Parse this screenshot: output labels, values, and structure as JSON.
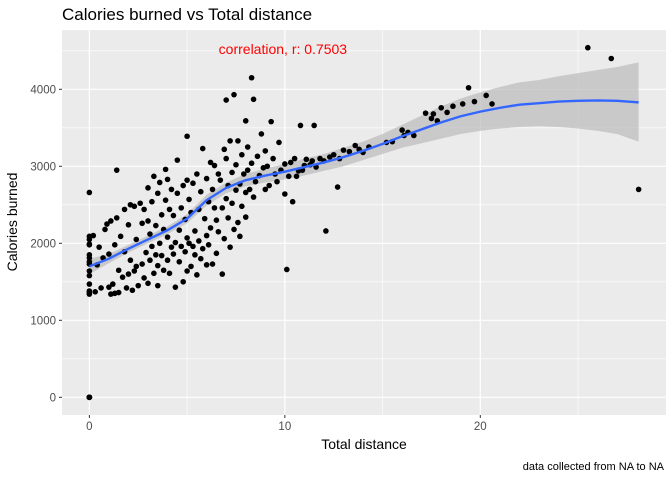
{
  "chart_data": {
    "type": "scatter",
    "title": "Calories burned vs Total distance",
    "xlabel": "Total distance",
    "ylabel": "Calories burned",
    "caption": "data collected from NA to NA",
    "annotation": {
      "text": "correlation, r: 0.7503",
      "x": 9.9,
      "y": 4460,
      "color": "#ff0000"
    },
    "xlim": [
      -1.4,
      29.5
    ],
    "ylim": [
      -230,
      4770
    ],
    "x_ticks": [
      0,
      10,
      20
    ],
    "y_ticks": [
      0,
      1000,
      2000,
      3000,
      4000
    ],
    "grid": true,
    "panel_background": "#ebebeb",
    "grid_color": "#ffffff",
    "point_color": "#000000",
    "smooth": {
      "method": "loess",
      "color": "#3366ff",
      "band_color": "#bdbdbd",
      "points": [
        [
          0,
          1700,
          1600,
          1800
        ],
        [
          1,
          1800,
          1740,
          1860
        ],
        [
          2,
          1930,
          1880,
          1980
        ],
        [
          3,
          2050,
          2000,
          2100
        ],
        [
          4,
          2170,
          2120,
          2220
        ],
        [
          5,
          2320,
          2260,
          2380
        ],
        [
          6,
          2560,
          2490,
          2630
        ],
        [
          7,
          2720,
          2650,
          2790
        ],
        [
          8,
          2820,
          2740,
          2900
        ],
        [
          9,
          2880,
          2790,
          2970
        ],
        [
          10,
          2930,
          2830,
          3030
        ],
        [
          11,
          2990,
          2880,
          3100
        ],
        [
          12,
          3050,
          2940,
          3160
        ],
        [
          13,
          3120,
          3000,
          3240
        ],
        [
          14,
          3200,
          3080,
          3320
        ],
        [
          15,
          3290,
          3160,
          3420
        ],
        [
          16,
          3390,
          3240,
          3540
        ],
        [
          17,
          3480,
          3300,
          3660
        ],
        [
          18,
          3570,
          3360,
          3780
        ],
        [
          19,
          3650,
          3420,
          3880
        ],
        [
          20,
          3710,
          3460,
          3960
        ],
        [
          21,
          3760,
          3490,
          4030
        ],
        [
          22,
          3800,
          3510,
          4090
        ],
        [
          23,
          3820,
          3520,
          4120
        ],
        [
          24,
          3840,
          3510,
          4170
        ],
        [
          25,
          3850,
          3490,
          4210
        ],
        [
          26,
          3855,
          3460,
          4250
        ],
        [
          27,
          3850,
          3420,
          4290
        ],
        [
          28.1,
          3830,
          3320,
          4350
        ]
      ]
    },
    "points": [
      [
        0,
        0
      ],
      [
        0,
        0
      ],
      [
        0,
        0
      ],
      [
        0,
        0
      ],
      [
        0,
        0
      ],
      [
        0,
        2660
      ],
      [
        0,
        2050
      ],
      [
        0,
        1990
      ],
      [
        0,
        1850
      ],
      [
        0,
        1810
      ],
      [
        0,
        1730
      ],
      [
        0,
        1640
      ],
      [
        0,
        1580
      ],
      [
        0,
        1470
      ],
      [
        0,
        1380
      ],
      [
        0,
        1360
      ],
      [
        0,
        1340
      ],
      [
        0,
        1980
      ],
      [
        0,
        2090
      ],
      [
        0,
        1760
      ],
      [
        0.2,
        2100
      ],
      [
        0.3,
        1370
      ],
      [
        0.4,
        1720
      ],
      [
        0.5,
        1950
      ],
      [
        0.6,
        1420
      ],
      [
        0.7,
        1810
      ],
      [
        0.8,
        2180
      ],
      [
        0.9,
        2250
      ],
      [
        1,
        1430
      ],
      [
        1,
        1860
      ],
      [
        1.1,
        1340
      ],
      [
        1.1,
        2290
      ],
      [
        1.2,
        1470
      ],
      [
        1.3,
        1350
      ],
      [
        1.3,
        1980
      ],
      [
        1.4,
        2950
      ],
      [
        1.4,
        2330
      ],
      [
        1.5,
        1650
      ],
      [
        1.5,
        1360
      ],
      [
        1.6,
        2090
      ],
      [
        1.7,
        1560
      ],
      [
        1.8,
        1890
      ],
      [
        1.8,
        2440
      ],
      [
        1.9,
        1420
      ],
      [
        2,
        1600
      ],
      [
        2,
        2240
      ],
      [
        2.1,
        1780
      ],
      [
        2.1,
        2500
      ],
      [
        2.2,
        1390
      ],
      [
        2.3,
        1640
      ],
      [
        2.3,
        2480
      ],
      [
        2.4,
        1700
      ],
      [
        2.4,
        2050
      ],
      [
        2.5,
        1450
      ],
      [
        2.6,
        2520
      ],
      [
        2.7,
        1730
      ],
      [
        2.7,
        2260
      ],
      [
        2.8,
        1550
      ],
      [
        2.8,
        2440
      ],
      [
        2.9,
        1880
      ],
      [
        3,
        1480
      ],
      [
        3,
        2290
      ],
      [
        3,
        2720
      ],
      [
        3.1,
        1780
      ],
      [
        3.1,
        2120
      ],
      [
        3.2,
        1960
      ],
      [
        3.2,
        2540
      ],
      [
        3.3,
        1610
      ],
      [
        3.3,
        2870
      ],
      [
        3.4,
        1850
      ],
      [
        3.4,
        2230
      ],
      [
        3.5,
        1450
      ],
      [
        3.5,
        2650
      ],
      [
        3.6,
        2000
      ],
      [
        3.6,
        2790
      ],
      [
        3.7,
        1840
      ],
      [
        3.7,
        2370
      ],
      [
        3.8,
        1650
      ],
      [
        3.8,
        2180
      ],
      [
        3.9,
        2960
      ],
      [
        3.9,
        2560
      ],
      [
        4,
        1780
      ],
      [
        4,
        2080
      ],
      [
        4,
        2830
      ],
      [
        4.1,
        1610
      ],
      [
        4.1,
        2440
      ],
      [
        4.2,
        1950
      ],
      [
        4.2,
        2700
      ],
      [
        4.3,
        1860
      ],
      [
        4.3,
        2360
      ],
      [
        4.4,
        1430
      ],
      [
        4.4,
        2010
      ],
      [
        4.5,
        2650
      ],
      [
        4.5,
        3080
      ],
      [
        4.6,
        1760
      ],
      [
        4.6,
        2170
      ],
      [
        4.7,
        2460
      ],
      [
        4.7,
        1960
      ],
      [
        4.8,
        1500
      ],
      [
        4.8,
        2750
      ],
      [
        4.9,
        1890
      ],
      [
        4.9,
        2310
      ],
      [
        5,
        1640
      ],
      [
        5,
        2070
      ],
      [
        5,
        2820
      ],
      [
        5,
        3390
      ],
      [
        5.1,
        2000
      ],
      [
        5.1,
        2570
      ],
      [
        5.2,
        1700
      ],
      [
        5.2,
        2400
      ],
      [
        5.3,
        1960
      ],
      [
        5.3,
        2780
      ],
      [
        5.4,
        1850
      ],
      [
        5.4,
        2160
      ],
      [
        5.5,
        1590
      ],
      [
        5.5,
        2900
      ],
      [
        5.6,
        2030
      ],
      [
        5.6,
        2440
      ],
      [
        5.7,
        1800
      ],
      [
        5.7,
        2670
      ],
      [
        5.8,
        1930
      ],
      [
        5.8,
        3230
      ],
      [
        5.9,
        2320
      ],
      [
        6,
        1720
      ],
      [
        6,
        2100
      ],
      [
        6,
        2840
      ],
      [
        6.1,
        1980
      ],
      [
        6.1,
        2540
      ],
      [
        6.2,
        2200
      ],
      [
        6.2,
        3050
      ],
      [
        6.3,
        1730
      ],
      [
        6.3,
        2700
      ],
      [
        6.4,
        2460
      ],
      [
        6.4,
        3010
      ],
      [
        6.5,
        1870
      ],
      [
        6.5,
        2300
      ],
      [
        6.6,
        2150
      ],
      [
        6.6,
        2900
      ],
      [
        6.7,
        2820
      ],
      [
        6.8,
        1600
      ],
      [
        6.8,
        2460
      ],
      [
        6.9,
        3220
      ],
      [
        6.9,
        2060
      ],
      [
        7,
        2580
      ],
      [
        7,
        3860
      ],
      [
        7,
        3100
      ],
      [
        7.1,
        2330
      ],
      [
        7.1,
        2750
      ],
      [
        7.2,
        1950
      ],
      [
        7.2,
        3330
      ],
      [
        7.3,
        2520
      ],
      [
        7.3,
        2920
      ],
      [
        7.4,
        2180
      ],
      [
        7.4,
        3930
      ],
      [
        7.5,
        2690
      ],
      [
        7.5,
        3020
      ],
      [
        7.6,
        2270
      ],
      [
        7.6,
        3330
      ],
      [
        7.7,
        2770
      ],
      [
        7.7,
        2090
      ],
      [
        7.8,
        2480
      ],
      [
        7.8,
        3150
      ],
      [
        7.9,
        2900
      ],
      [
        8,
        2340
      ],
      [
        8,
        2660
      ],
      [
        8,
        3590
      ],
      [
        8.1,
        2950
      ],
      [
        8.1,
        3250
      ],
      [
        8.2,
        2700
      ],
      [
        8.3,
        4150
      ],
      [
        8.3,
        3040
      ],
      [
        8.4,
        2600
      ],
      [
        8.4,
        3870
      ],
      [
        8.5,
        2800
      ],
      [
        8.6,
        3130
      ],
      [
        8.7,
        2880
      ],
      [
        8.8,
        3420
      ],
      [
        8.9,
        2980
      ],
      [
        9,
        3200
      ],
      [
        9,
        2700
      ],
      [
        9.1,
        3000
      ],
      [
        9.2,
        2750
      ],
      [
        9.3,
        3580
      ],
      [
        9.4,
        3100
      ],
      [
        9.5,
        2900
      ],
      [
        9.6,
        2800
      ],
      [
        9.7,
        3310
      ],
      [
        9.8,
        2950
      ],
      [
        10,
        3030
      ],
      [
        10,
        2640
      ],
      [
        10.1,
        1660
      ],
      [
        10.2,
        2870
      ],
      [
        10.3,
        3050
      ],
      [
        10.4,
        2540
      ],
      [
        10.5,
        3100
      ],
      [
        10.6,
        2870
      ],
      [
        10.7,
        2940
      ],
      [
        10.8,
        3530
      ],
      [
        10.9,
        2950
      ],
      [
        11,
        3010
      ],
      [
        11.1,
        3090
      ],
      [
        11.3,
        3020
      ],
      [
        11.4,
        3070
      ],
      [
        11.5,
        3530
      ],
      [
        11.6,
        2990
      ],
      [
        11.8,
        3100
      ],
      [
        12,
        3070
      ],
      [
        12.1,
        2160
      ],
      [
        12.3,
        3120
      ],
      [
        12.5,
        3150
      ],
      [
        12.8,
        3100
      ],
      [
        13,
        3210
      ],
      [
        13.3,
        3190
      ],
      [
        13.6,
        3270
      ],
      [
        13.8,
        3220
      ],
      [
        14,
        3180
      ],
      [
        14.3,
        3250
      ],
      [
        15.2,
        3310
      ],
      [
        15.5,
        3320
      ],
      [
        16,
        3470
      ],
      [
        16.1,
        3400
      ],
      [
        16.3,
        3440
      ],
      [
        16.6,
        3400
      ],
      [
        17.2,
        3690
      ],
      [
        17.5,
        3620
      ],
      [
        17.6,
        3680
      ],
      [
        17.8,
        3590
      ],
      [
        18,
        3760
      ],
      [
        18.3,
        3700
      ],
      [
        18.6,
        3780
      ],
      [
        19.1,
        3810
      ],
      [
        19.4,
        4020
      ],
      [
        19.7,
        3840
      ],
      [
        20.3,
        3920
      ],
      [
        20.6,
        3810
      ],
      [
        25.5,
        4540
      ],
      [
        26.7,
        4400
      ],
      [
        28.1,
        2700
      ],
      [
        12.7,
        2730
      ],
      [
        3.5,
        1710
      ]
    ]
  }
}
